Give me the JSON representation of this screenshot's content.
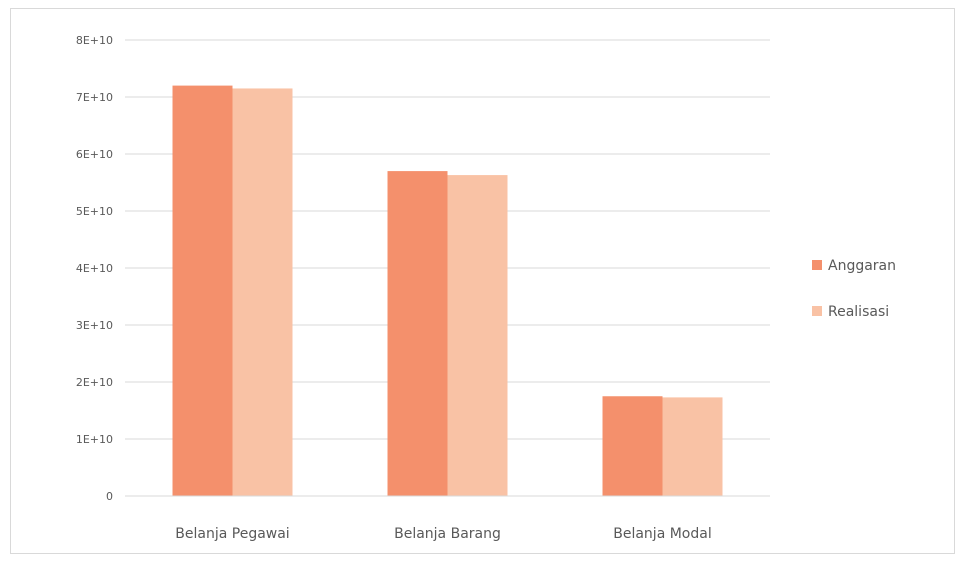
{
  "chart_data": {
    "type": "bar",
    "categories": [
      "Belanja Pegawai",
      "Belanja Barang",
      "Belanja Modal"
    ],
    "series": [
      {
        "name": "Anggaran",
        "values": [
          72000000000,
          57000000000,
          17500000000
        ],
        "color": "#f4906c"
      },
      {
        "name": "Realisasi",
        "values": [
          71500000000,
          56300000000,
          17300000000
        ],
        "color": "#f9c2a5"
      }
    ],
    "ylim": [
      0,
      80000000000
    ],
    "y_ticks": [
      0,
      10000000000,
      20000000000,
      30000000000,
      40000000000,
      50000000000,
      60000000000,
      70000000000,
      80000000000
    ],
    "y_tick_labels": [
      "0",
      "1E+10",
      "2E+10",
      "3E+10",
      "4E+10",
      "5E+10",
      "6E+10",
      "7E+10",
      "8E+10"
    ],
    "grid": true,
    "legend_position": "right",
    "title": "",
    "xlabel": "",
    "ylabel": ""
  }
}
